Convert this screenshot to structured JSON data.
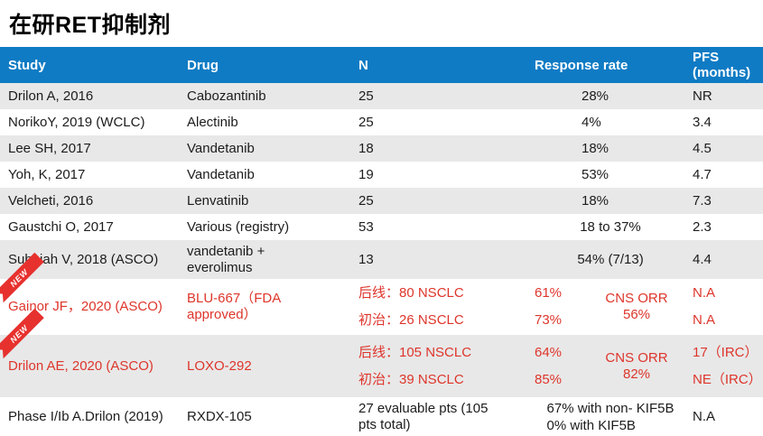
{
  "page": {
    "title": "在研RET抑制剂",
    "new_badge_label": "NEW",
    "colors": {
      "header_bg": "#0f7bc4",
      "header_text": "#ffffff",
      "stripe": "#e8e8e8",
      "body_text": "#1c1c1c",
      "red_text": "#de352b",
      "ribbon_red": "#e7312e"
    }
  },
  "table": {
    "columns": [
      "Study",
      "Drug",
      "N",
      "Response rate",
      "PFS (months)"
    ],
    "rows": [
      {
        "study": "Drilon A, 2016",
        "drug": "Cabozantinib",
        "n": [
          "25"
        ],
        "rr": [
          "28%"
        ],
        "pfs": [
          "NR"
        ]
      },
      {
        "study": "NorikoY, 2019 (WCLC)",
        "drug": "Alectinib",
        "n": [
          "25"
        ],
        "rr": [
          "4%"
        ],
        "pfs": [
          "3.4"
        ]
      },
      {
        "study": "Lee SH, 2017",
        "drug": "Vandetanib",
        "n": [
          "18"
        ],
        "rr": [
          "18%"
        ],
        "pfs": [
          "4.5"
        ]
      },
      {
        "study": "Yoh, K, 2017",
        "drug": "Vandetanib",
        "n": [
          "19"
        ],
        "rr": [
          "53%"
        ],
        "pfs": [
          "4.7"
        ]
      },
      {
        "study": "Velcheti, 2016",
        "drug": "Lenvatinib",
        "n": [
          "25"
        ],
        "rr": [
          "18%"
        ],
        "pfs": [
          "7.3"
        ]
      },
      {
        "study": "Gaustchi O, 2017",
        "drug": "Various (registry)",
        "n": [
          "53"
        ],
        "rr": [
          "18 to 37%"
        ],
        "pfs": [
          "2.3"
        ]
      },
      {
        "study": "Subbiah V, 2018 (ASCO)",
        "drug": "vandetanib +\neverolimus",
        "n": [
          "13"
        ],
        "rr": [
          "54% (7/13)"
        ],
        "pfs": [
          "4.4"
        ]
      },
      {
        "study": "Gainor JF，2020 (ASCO)",
        "drug": "BLU-667（FDA\napproved）",
        "n": [
          "后线：80 NSCLC",
          "初治：26 NSCLC"
        ],
        "rr": [
          "61%",
          "73%"
        ],
        "cns": [
          "CNS ORR",
          "56%"
        ],
        "pfs": [
          "N.A",
          "N.A"
        ],
        "red": true,
        "new_badge": true
      },
      {
        "study": "Drilon AE, 2020 (ASCO)",
        "drug": "LOXO-292",
        "n": [
          "后线：105 NSCLC",
          "初治：39 NSCLC"
        ],
        "rr": [
          "64%",
          "85%"
        ],
        "cns": [
          "CNS ORR",
          "82%"
        ],
        "pfs": [
          "17（IRC）",
          "NE（IRC）"
        ],
        "red": true,
        "new_badge": true
      },
      {
        "study": "Phase I/Ib A.Drilon (2019)",
        "drug": "RXDX-105",
        "n": [
          "27 evaluable pts (105\npts total)"
        ],
        "rr": [
          "67% with non- KIF5B",
          "0% with KIF5B"
        ],
        "pfs": [
          "N.A"
        ]
      }
    ]
  }
}
